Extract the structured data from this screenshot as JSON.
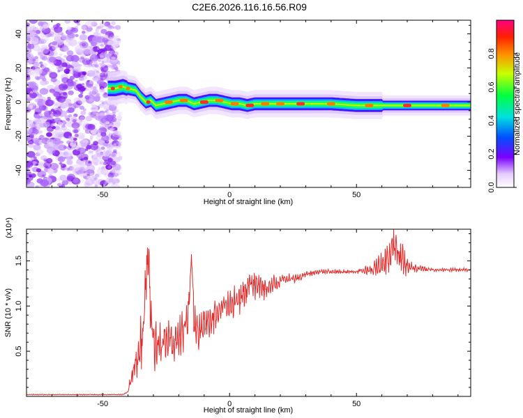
{
  "title": "C2E6.2026.116.16.56.R09",
  "chart_data": [
    {
      "type": "heatmap",
      "title": "",
      "xlabel": "Height of straight line (km)",
      "ylabel": "Frequency (Hz)",
      "xlim": [
        -80,
        95
      ],
      "ylim": [
        -50,
        48
      ],
      "x_ticks": [
        "-50",
        "0",
        "50"
      ],
      "y_ticks": [
        "-40",
        "-20",
        "0",
        "20",
        "40"
      ],
      "colorbar": {
        "label": "Normalized spectral amplitude",
        "range": [
          0,
          1
        ],
        "ticks": [
          "0.0",
          "0.2",
          "0.4",
          "0.6",
          "0.8"
        ]
      },
      "ridge": [
        [
          -48,
          8
        ],
        [
          -45,
          8
        ],
        [
          -42,
          9
        ],
        [
          -40,
          8
        ],
        [
          -37,
          7
        ],
        [
          -35,
          3
        ],
        [
          -33,
          0
        ],
        [
          -31,
          1
        ],
        [
          -29,
          -2
        ],
        [
          -26,
          -1
        ],
        [
          -23,
          0
        ],
        [
          -20,
          1
        ],
        [
          -17,
          1
        ],
        [
          -14,
          -1
        ],
        [
          -11,
          0
        ],
        [
          -8,
          1
        ],
        [
          -5,
          1
        ],
        [
          -2,
          0
        ],
        [
          1,
          -1
        ],
        [
          4,
          -1
        ],
        [
          7,
          -2
        ],
        [
          10,
          -1
        ],
        [
          15,
          -1
        ],
        [
          20,
          -1
        ],
        [
          30,
          -1
        ],
        [
          40,
          -1
        ],
        [
          50,
          -2
        ],
        [
          60,
          -2
        ],
        [
          70,
          -2
        ],
        [
          80,
          -2
        ],
        [
          95,
          -2
        ]
      ]
    },
    {
      "type": "line",
      "title": "",
      "xlabel": "Height of straight line (km)",
      "ylabel": "SNR (10 * v/v)",
      "y_multiplier": "(x10⁴)",
      "xlim": [
        -80,
        95
      ],
      "ylim": [
        0,
        1.85
      ],
      "x_ticks": [
        "-50",
        "0",
        "50"
      ],
      "y_ticks": [
        "0.5",
        "1.0",
        "1.5"
      ],
      "color": "#e32a2a",
      "envelope": [
        [
          -80,
          0.02
        ],
        [
          -45,
          0.02
        ],
        [
          -42,
          0.02
        ],
        [
          -40,
          0.05
        ],
        [
          -38,
          0.3
        ],
        [
          -36,
          0.45
        ],
        [
          -34,
          0.7
        ],
        [
          -33,
          1.3
        ],
        [
          -32,
          1.6
        ],
        [
          -31,
          0.9
        ],
        [
          -30,
          0.6
        ],
        [
          -28,
          0.5
        ],
        [
          -26,
          0.6
        ],
        [
          -24,
          0.7
        ],
        [
          -22,
          0.55
        ],
        [
          -20,
          0.65
        ],
        [
          -18,
          0.7
        ],
        [
          -16,
          1.0
        ],
        [
          -15,
          1.6
        ],
        [
          -14,
          0.8
        ],
        [
          -12,
          0.7
        ],
        [
          -10,
          0.8
        ],
        [
          -8,
          0.85
        ],
        [
          -5,
          0.9
        ],
        [
          -2,
          1.0
        ],
        [
          0,
          1.0
        ],
        [
          3,
          1.05
        ],
        [
          6,
          1.15
        ],
        [
          9,
          1.25
        ],
        [
          12,
          1.2
        ],
        [
          15,
          1.2
        ],
        [
          18,
          1.25
        ],
        [
          22,
          1.3
        ],
        [
          26,
          1.3
        ],
        [
          30,
          1.35
        ],
        [
          35,
          1.38
        ],
        [
          40,
          1.38
        ],
        [
          45,
          1.38
        ],
        [
          50,
          1.38
        ],
        [
          55,
          1.4
        ],
        [
          58,
          1.42
        ],
        [
          62,
          1.5
        ],
        [
          65,
          1.7
        ],
        [
          68,
          1.5
        ],
        [
          72,
          1.42
        ],
        [
          80,
          1.4
        ],
        [
          88,
          1.4
        ],
        [
          95,
          1.4
        ]
      ],
      "noise_amplitude": [
        [
          -80,
          0.005
        ],
        [
          -40,
          0.005
        ],
        [
          -38,
          0.2
        ],
        [
          -34,
          0.35
        ],
        [
          -30,
          0.3
        ],
        [
          -24,
          0.22
        ],
        [
          -16,
          0.25
        ],
        [
          -10,
          0.2
        ],
        [
          -4,
          0.18
        ],
        [
          2,
          0.18
        ],
        [
          8,
          0.18
        ],
        [
          14,
          0.15
        ],
        [
          20,
          0.08
        ],
        [
          26,
          0.05
        ],
        [
          32,
          0.03
        ],
        [
          50,
          0.02
        ],
        [
          55,
          0.06
        ],
        [
          60,
          0.15
        ],
        [
          64,
          0.25
        ],
        [
          68,
          0.2
        ],
        [
          72,
          0.05
        ],
        [
          80,
          0.02
        ],
        [
          95,
          0.02
        ]
      ]
    }
  ]
}
